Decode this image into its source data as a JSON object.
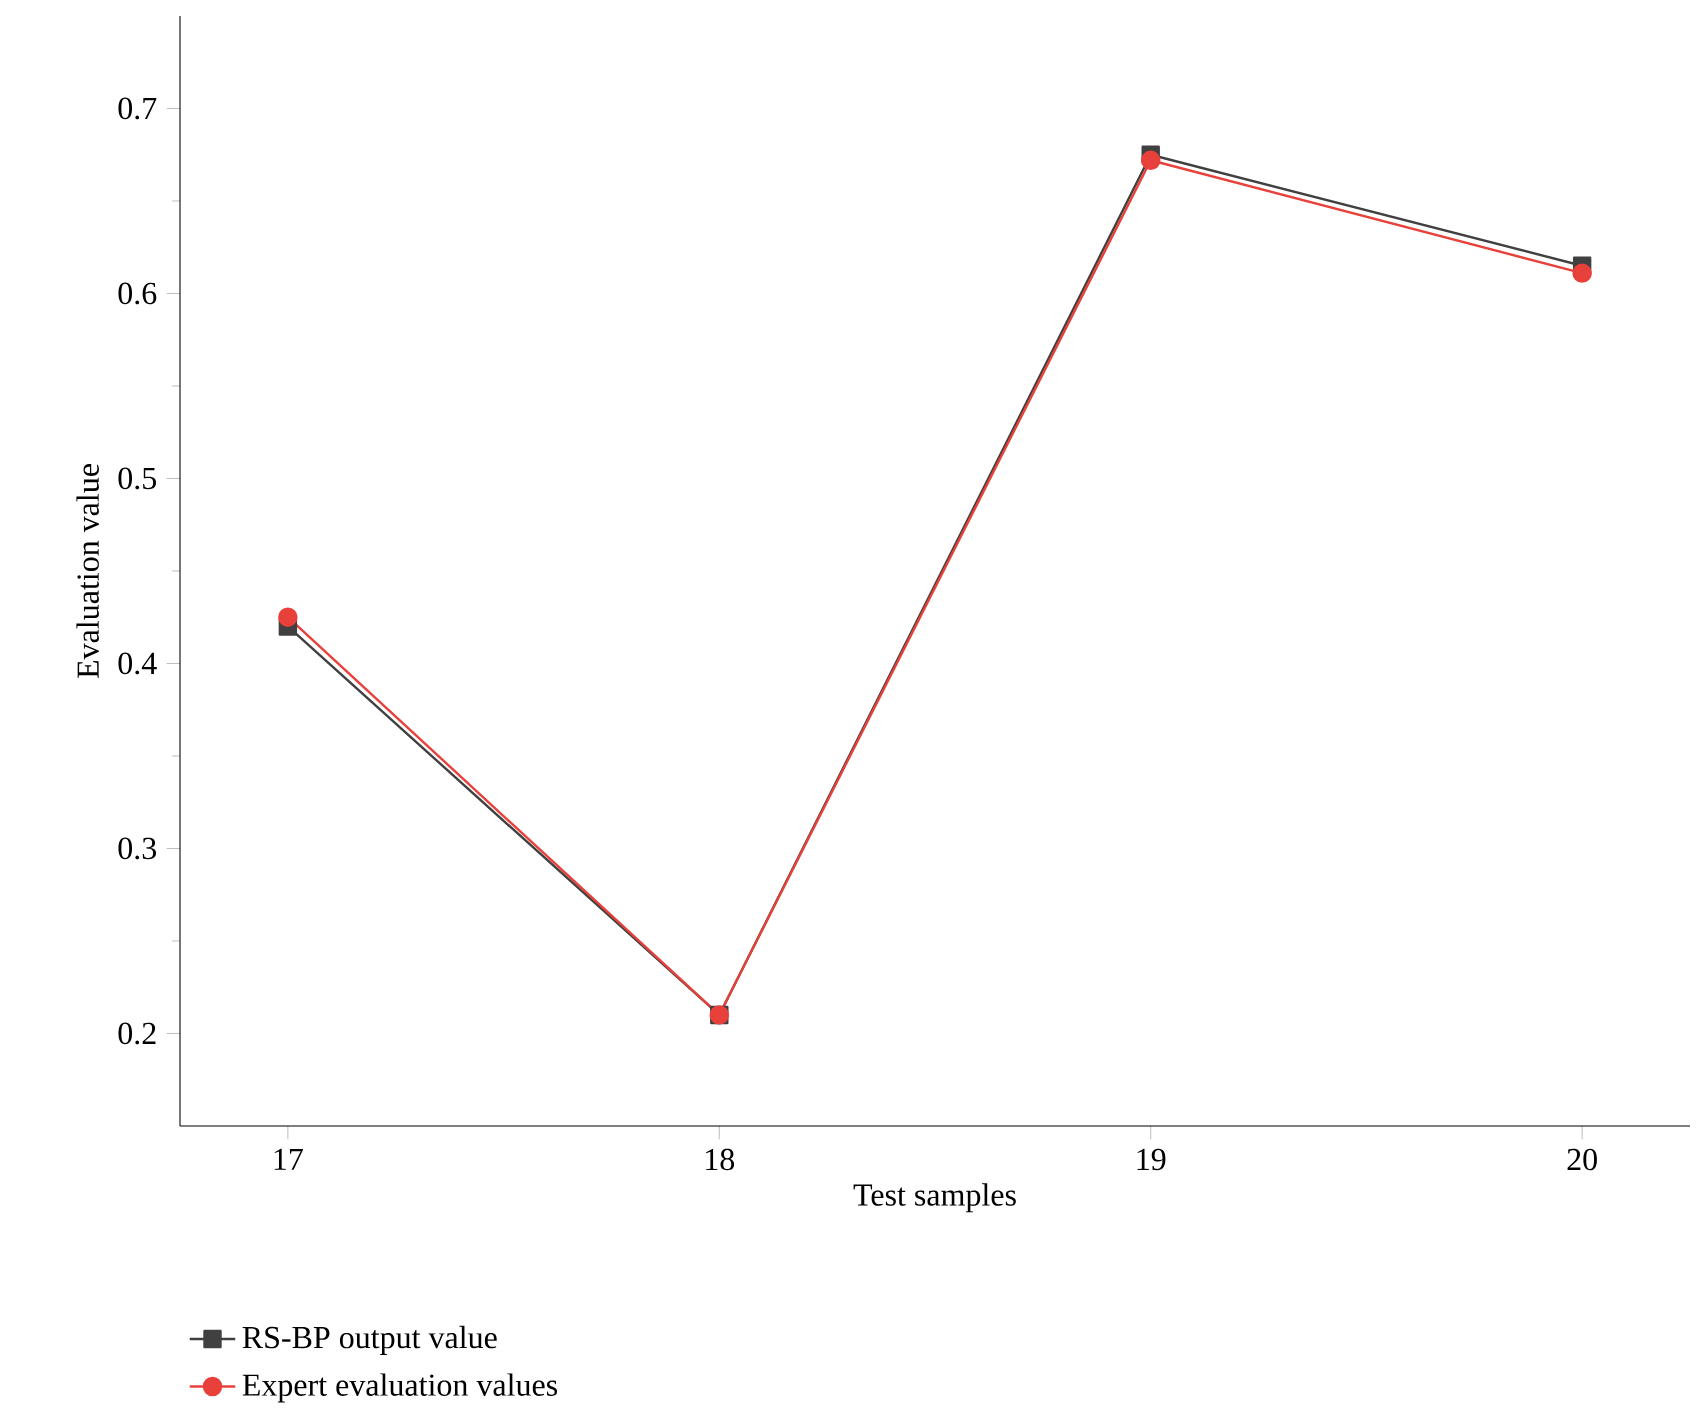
{
  "chart_data": {
    "type": "line",
    "xlabel": "Test samples",
    "ylabel": "Evaluation value",
    "x": [
      17,
      18,
      19,
      20
    ],
    "series": [
      {
        "name": "RS-BP output value",
        "color": "#404040",
        "marker": "square",
        "values": [
          0.42,
          0.21,
          0.675,
          0.615
        ]
      },
      {
        "name": "Expert evaluation values",
        "color": "#e8403a",
        "marker": "circle",
        "values": [
          0.425,
          0.21,
          0.672,
          0.611
        ]
      }
    ],
    "xlim": [
      16.75,
      20.25
    ],
    "ylim": [
      0.15,
      0.75
    ],
    "xticks": [
      17,
      18,
      19,
      20
    ],
    "yticks": [
      0.2,
      0.3,
      0.4,
      0.5,
      0.6,
      0.7
    ],
    "grid": false,
    "legend": "bottom left",
    "line_style": "solid"
  }
}
